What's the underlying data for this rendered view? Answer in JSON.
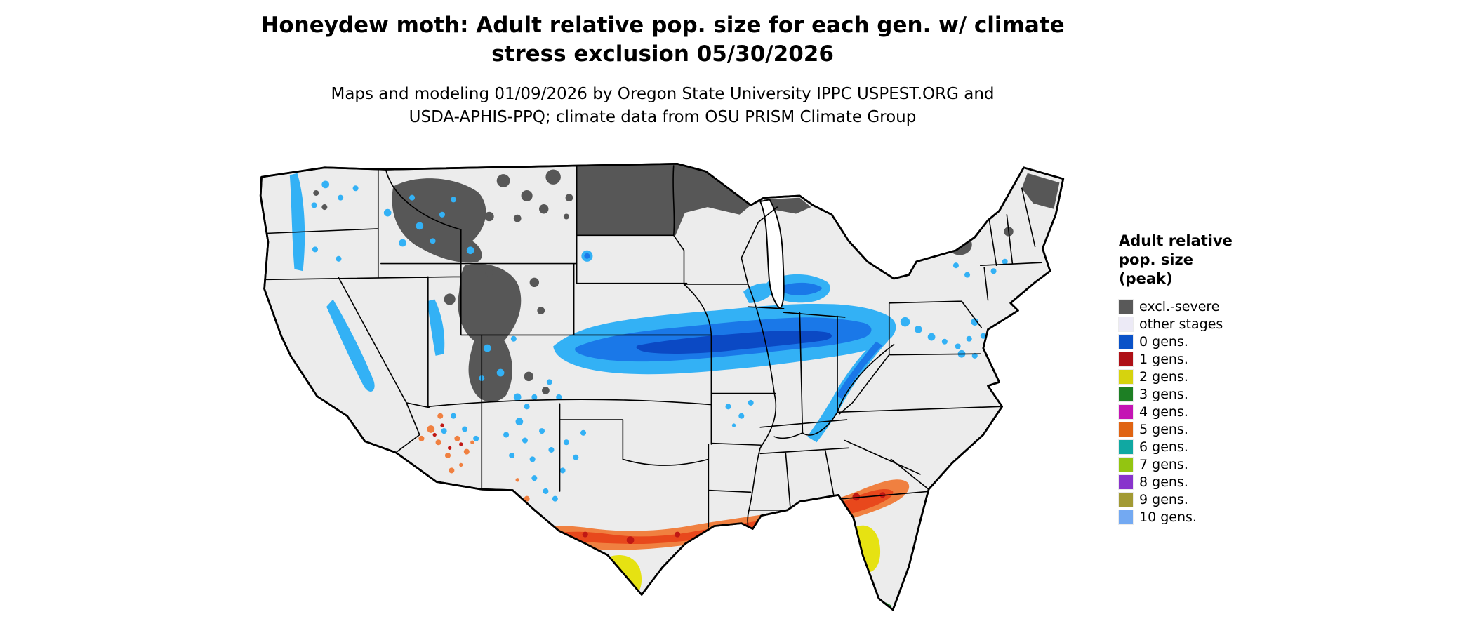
{
  "title": {
    "line1": "Honeydew moth: Adult relative pop. size for each gen. w/ climate",
    "line2": "stress exclusion 05/30/2026"
  },
  "subtitle": {
    "line1": "Maps and modeling 01/09/2026 by Oregon State University IPPC USPEST.ORG and",
    "line2": "USDA-APHIS-PPQ; climate data from OSU PRISM Climate Group"
  },
  "legend": {
    "title_lines": [
      "Adult relative",
      "pop. size",
      "(peak)"
    ],
    "items": [
      {
        "label": "excl.-severe",
        "color": "#595959"
      },
      {
        "label": "other stages",
        "color": "#eceaf6"
      },
      {
        "label": "0 gens.",
        "color": "#0a52c8"
      },
      {
        "label": "1 gens.",
        "color": "#ae1016"
      },
      {
        "label": "2 gens.",
        "color": "#d6d30e"
      },
      {
        "label": "3 gens.",
        "color": "#1d7f24"
      },
      {
        "label": "4 gens.",
        "color": "#c414b4"
      },
      {
        "label": "5 gens.",
        "color": "#e06413"
      },
      {
        "label": "6 gens.",
        "color": "#10a8a2"
      },
      {
        "label": "7 gens.",
        "color": "#93c511"
      },
      {
        "label": "8 gens.",
        "color": "#8834cc"
      },
      {
        "label": "9 gens.",
        "color": "#a29a34"
      },
      {
        "label": "10 gens.",
        "color": "#73a9f2"
      }
    ]
  },
  "map": {
    "region": "Continental United States",
    "palette": {
      "base": "#ececec",
      "border": "#000000",
      "excl_severe": "#575757",
      "blue_light": "#33b1f5",
      "blue_mid": "#1a78e8",
      "blue_core": "#0b49c4",
      "orange_light": "#f08040",
      "orange_core": "#e8481c",
      "red_dark": "#c01814",
      "yellow": "#e6e212",
      "green": "#1f8f28",
      "lake": "#ffffff"
    }
  }
}
